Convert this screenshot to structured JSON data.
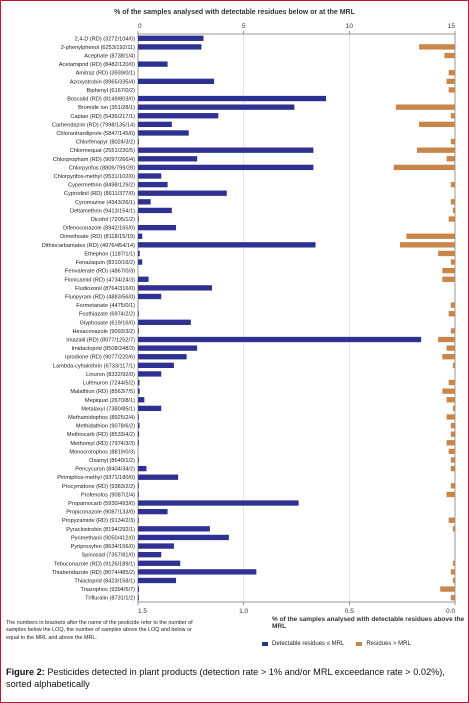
{
  "figure": {
    "caption_label": "Figure 2:",
    "caption_text": " Pesticides detected in plant products (detection rate > 1% and/or MRL exceedance rate > 0.02%), sorted alphabetically",
    "footnote": "The numbers in brackets after the name of the pesticide refer to the number of samples below the LOQ, the number of samples above the LOQ and below or equal to the MRL and above the MRL."
  },
  "chart_data": {
    "type": "bar",
    "orientation": "horizontal",
    "top_axis": {
      "label": "% of the samples analysed with detectable residues below or at the MRL",
      "ticks": [
        "0",
        "5",
        "10",
        "15"
      ],
      "range": [
        0,
        15
      ]
    },
    "bottom_axis": {
      "label": "% of the samples analysed with detectable residues above the MRL",
      "ticks": [
        "1.5",
        "1.0",
        "0.5",
        "0.0"
      ],
      "range": [
        1.5,
        0.0
      ]
    },
    "colors": {
      "below_mrl": "#2e3192",
      "above_mrl": "#c8864a"
    },
    "legend": {
      "below_mrl": "Detectable residues ≤ MRL",
      "above_mrl": "Residues > MRL",
      "position": "bottom-right"
    },
    "categories": [
      "2,4-D (RD) (3272/104/0)",
      "2-phenylphenol (6253/192/11)",
      "Acephate (8738/1/4)",
      "Acetamiprid (RD) (8482/120/0)",
      "Amitraz (RD) (3939/0/1)",
      "Azoxystrobin (8965/335/4)",
      "Biphenyl (6167/0/2)",
      "Boscalid (RD) (8149/803/0)",
      "Bromide ion (351/28/1)",
      "Captan (RD) (5436/217/1)",
      "Carbendazim (RD) (7998/135/14)",
      "Chlorantraniliprole (5847/145/0)",
      "Chlorfenapyr (8024/3/2)",
      "Chlormequat (2551/230/5)",
      "Chlorpropham (RD) (9097/266/4)",
      "Chlorpyrifos (8806/799/28)",
      "Chlorpyrifos-methyl (9531/102/0)",
      "Cypermethrin (8498/129/2)",
      "Cyprodinil (RD) (8611/377/0)",
      "Cyromazine (4343/26/1)",
      "Deltamethrin (9413/154/1)",
      "Dicofol (7205/1/2)",
      "Difenoconazole (8942/165/0)",
      "Dimethoate (RD) (8118/15/19)",
      "Dithiocarbamates (RD) (4976/454/14)",
      "Ethephon (1187/1/1)",
      "Fenazaquin (8310/16/2)",
      "Fenvalerate (RD) (4867/0/3)",
      "Flonicamid (RD) (4734/24/3)",
      "Fludioxonil (8764/316/0)",
      "Fluopyram (RD) (4883/56/0)",
      "Formetanate (4475/0/1)",
      "Fosthiazate (6974/2/2)",
      "Glyphosate (619/16/0)",
      "Hexaconazole (9093/3/2)",
      "Imazalil (RD) (8077/1252/7)",
      "Imidacloprid (8508/248/3)",
      "Iprodione (RD) (9077/220/6)",
      "Lambda-cyhalothrin (6733/117/1)",
      "Linuron (8332/92/0)",
      "Lufenuron (7244/5/2)",
      "Malathion (RD) (8563/7/5)",
      "Mepiquat (2670/8/1)",
      "Metalaxyl (7380/85/1)",
      "Methamidophos (8925/2/4)",
      "Methidathion (9078/6/2)",
      "Methiocarb (RD) (8533/4/2)",
      "Methomyl (RD) (7974/3/3)",
      "Monocrotophos (8819/0/3)",
      "Oxamyl (8640/1/2)",
      "Pencycuron (8404/34/2)",
      "Pirimiphos-methyl (9371/180/0)",
      "Procymidone (RD) (9383/2/2)",
      "Profenofos (9087/2/4)",
      "Propamocarb (5930/493/0)",
      "Propiconazole (9087/133/0)",
      "Propyzamide (RD) (9134/2/3)",
      "Pyraclostrobin (8194/292/1)",
      "Pyrimethanil (9050/412/0)",
      "Pyriproxyfen (8634/156/0)",
      "Spinosad (7357/81/0)",
      "Tebuconazole (RD) (9126/189/1)",
      "Thiabendazole (RD) (8074/485/2)",
      "Thiacloprid (8423/158/1)",
      "Triazophos (9394/5/7)",
      "Trifluralin (8731/1/2)"
    ],
    "series": [
      {
        "name": "Detectable residues ≤ MRL",
        "values": [
          3.1,
          3.0,
          0.0,
          1.4,
          0.0,
          3.6,
          0.0,
          8.9,
          7.4,
          3.8,
          1.6,
          2.4,
          0.04,
          8.3,
          2.8,
          8.3,
          1.1,
          1.4,
          4.2,
          0.6,
          1.6,
          0.01,
          1.8,
          0.2,
          8.4,
          0.08,
          0.2,
          0.0,
          0.5,
          3.5,
          1.1,
          0.0,
          0.03,
          2.5,
          0.03,
          13.4,
          2.8,
          2.3,
          1.7,
          1.1,
          0.07,
          0.08,
          0.3,
          1.1,
          0.02,
          0.07,
          0.05,
          0.04,
          0.0,
          0.01,
          0.4,
          1.9,
          0.02,
          0.02,
          7.6,
          1.4,
          0.02,
          3.4,
          4.3,
          1.7,
          1.1,
          2.0,
          5.6,
          1.8,
          0.05,
          0.01
        ]
      },
      {
        "name": "Residues > MRL",
        "values": [
          0.0,
          0.17,
          0.05,
          0.0,
          0.03,
          0.04,
          0.03,
          0.0,
          0.28,
          0.02,
          0.17,
          0.0,
          0.02,
          0.18,
          0.04,
          0.29,
          0.0,
          0.02,
          0.0,
          0.02,
          0.01,
          0.03,
          0.0,
          0.23,
          0.26,
          0.08,
          0.02,
          0.06,
          0.06,
          0.0,
          0.0,
          0.02,
          0.03,
          0.0,
          0.02,
          0.08,
          0.04,
          0.06,
          0.01,
          0.0,
          0.03,
          0.06,
          0.04,
          0.01,
          0.04,
          0.02,
          0.02,
          0.04,
          0.03,
          0.02,
          0.02,
          0.0,
          0.02,
          0.04,
          0.0,
          0.0,
          0.03,
          0.01,
          0.0,
          0.0,
          0.0,
          0.01,
          0.02,
          0.01,
          0.07,
          0.02
        ]
      }
    ],
    "grid": true
  }
}
